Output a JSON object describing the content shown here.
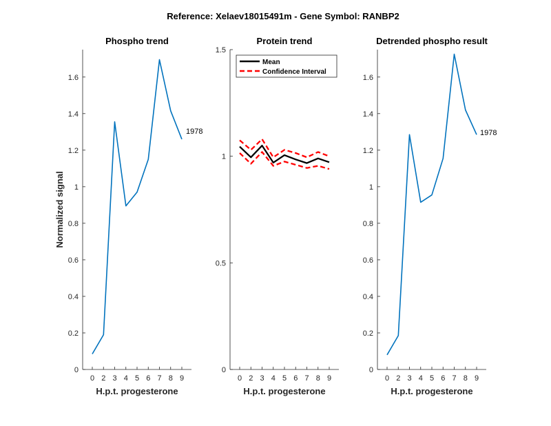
{
  "figure_title": "Reference:  Xelaev18015491m - Gene Symbol:  RANBP2",
  "chart_data": [
    {
      "type": "line",
      "title": "Phospho trend",
      "xlabel": "H.p.t. progesterone",
      "ylabel": "Normalized signal",
      "x_ticks": [
        "0",
        "2",
        "3",
        "4",
        "5",
        "6",
        "7",
        "8",
        "9"
      ],
      "y_ticks": [
        "0",
        "0.2",
        "0.4",
        "0.6",
        "0.8",
        "1",
        "1.2",
        "1.4",
        "1.6"
      ],
      "ylim": [
        0,
        1.75
      ],
      "series": [
        {
          "color": "#0072bd",
          "values": [
            0.085,
            0.19,
            1.355,
            0.895,
            0.97,
            1.15,
            1.695,
            1.415,
            1.26
          ]
        }
      ],
      "annotation": "1978"
    },
    {
      "type": "line",
      "title": "Protein trend",
      "xlabel": "H.p.t. progesterone",
      "ylabel": "",
      "x_ticks": [
        "0",
        "2",
        "3",
        "4",
        "5",
        "6",
        "7",
        "8",
        "9"
      ],
      "y_ticks": [
        "0",
        "0.5",
        "1",
        "1.5"
      ],
      "ylim": [
        0,
        1.5
      ],
      "legend": [
        "Mean",
        "Confidence Interval"
      ],
      "legend_position": "top-right",
      "series": [
        {
          "name": "Mean",
          "color": "#000000",
          "style": "solid",
          "values": [
            1.045,
            0.995,
            1.05,
            0.97,
            1.005,
            0.985,
            0.968,
            0.99,
            0.972
          ]
        },
        {
          "name": "Confidence Interval",
          "color": "#ff0000",
          "style": "dashed",
          "values": [
            1.075,
            1.03,
            1.08,
            0.995,
            1.03,
            1.015,
            0.995,
            1.02,
            1.0
          ]
        },
        {
          "name": "Confidence Interval",
          "color": "#ff0000",
          "style": "dashed",
          "values": [
            1.015,
            0.965,
            1.02,
            0.955,
            0.975,
            0.96,
            0.945,
            0.955,
            0.94
          ]
        }
      ]
    },
    {
      "type": "line",
      "title": "Detrended phospho result",
      "xlabel": "H.p.t. progesterone",
      "ylabel": "",
      "x_ticks": [
        "0",
        "2",
        "3",
        "4",
        "5",
        "6",
        "7",
        "8",
        "9"
      ],
      "y_ticks": [
        "0",
        "0.2",
        "0.4",
        "0.6",
        "0.8",
        "1",
        "1.2",
        "1.4",
        "1.6"
      ],
      "ylim": [
        0,
        1.75
      ],
      "series": [
        {
          "color": "#0072bd",
          "values": [
            0.08,
            0.185,
            1.285,
            0.915,
            0.955,
            1.155,
            1.725,
            1.42,
            1.285
          ]
        }
      ],
      "annotation": "1978"
    }
  ]
}
